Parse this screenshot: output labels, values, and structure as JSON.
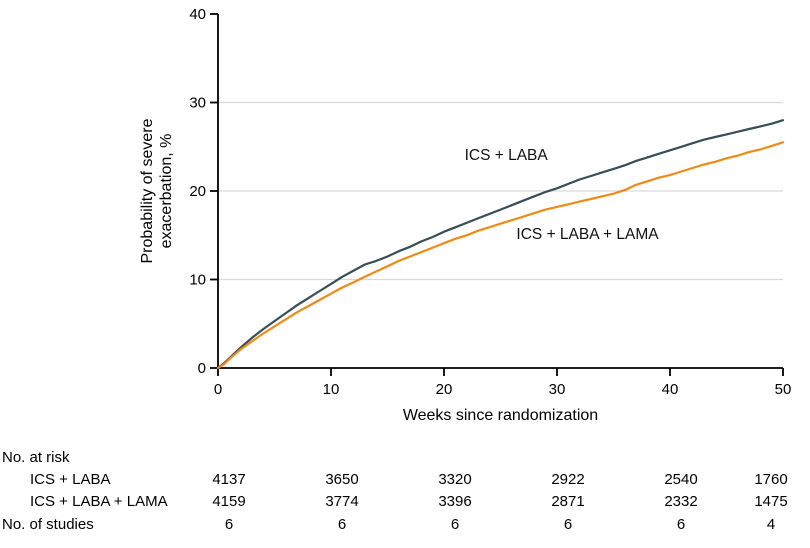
{
  "chart_data": {
    "type": "line",
    "title": "",
    "xlabel": "Weeks since randomization",
    "ylabel": "Probability of severe exacerbation, %",
    "ylabel_lines": [
      "Probability of severe",
      "exacerbation, %"
    ],
    "xlim": [
      0,
      50
    ],
    "ylim": [
      0,
      40
    ],
    "xticks": [
      0,
      10,
      20,
      30,
      40,
      50
    ],
    "yticks": [
      0,
      10,
      20,
      30,
      40
    ],
    "gridlines_y": [
      10,
      20,
      30
    ],
    "grid": "horizontal-light",
    "legend_position": "inline-annotations",
    "colors": {
      "ics_laba": "#374e55",
      "ics_laba_lama": "#ef8a17",
      "grid": "#d9d9d9",
      "axis": "#000000"
    },
    "series": [
      {
        "id": "ics-laba",
        "name": "ICS + LABA",
        "color": "#374e55",
        "points": [
          [
            0,
            0
          ],
          [
            0.5,
            0.5
          ],
          [
            1,
            1.1
          ],
          [
            2,
            2.3
          ],
          [
            3,
            3.4
          ],
          [
            4,
            4.4
          ],
          [
            5,
            5.3
          ],
          [
            6,
            6.2
          ],
          [
            7,
            7.1
          ],
          [
            8,
            7.9
          ],
          [
            9,
            8.7
          ],
          [
            10,
            9.5
          ],
          [
            11,
            10.3
          ],
          [
            12,
            11.0
          ],
          [
            13,
            11.7
          ],
          [
            14,
            12.1
          ],
          [
            15,
            12.6
          ],
          [
            16,
            13.2
          ],
          [
            17,
            13.7
          ],
          [
            18,
            14.3
          ],
          [
            19,
            14.8
          ],
          [
            20,
            15.4
          ],
          [
            21,
            15.9
          ],
          [
            22,
            16.4
          ],
          [
            23,
            16.9
          ],
          [
            24,
            17.4
          ],
          [
            25,
            17.9
          ],
          [
            26,
            18.4
          ],
          [
            27,
            18.9
          ],
          [
            28,
            19.4
          ],
          [
            29,
            19.9
          ],
          [
            30,
            20.3
          ],
          [
            31,
            20.8
          ],
          [
            32,
            21.3
          ],
          [
            33,
            21.7
          ],
          [
            34,
            22.1
          ],
          [
            35,
            22.5
          ],
          [
            36,
            22.9
          ],
          [
            37,
            23.4
          ],
          [
            38,
            23.8
          ],
          [
            39,
            24.2
          ],
          [
            40,
            24.6
          ],
          [
            41,
            25.0
          ],
          [
            42,
            25.4
          ],
          [
            43,
            25.8
          ],
          [
            44,
            26.1
          ],
          [
            45,
            26.4
          ],
          [
            46,
            26.7
          ],
          [
            47,
            27.0
          ],
          [
            48,
            27.3
          ],
          [
            49,
            27.6
          ],
          [
            50,
            28.0
          ]
        ]
      },
      {
        "id": "ics-laba-lama",
        "name": "ICS + LABA + LAMA",
        "color": "#ef8a17",
        "points": [
          [
            0,
            0
          ],
          [
            0.5,
            0.4
          ],
          [
            1,
            1.0
          ],
          [
            2,
            2.1
          ],
          [
            3,
            3.0
          ],
          [
            4,
            3.9
          ],
          [
            5,
            4.7
          ],
          [
            6,
            5.5
          ],
          [
            7,
            6.3
          ],
          [
            8,
            7.0
          ],
          [
            9,
            7.7
          ],
          [
            10,
            8.4
          ],
          [
            11,
            9.1
          ],
          [
            12,
            9.7
          ],
          [
            13,
            10.3
          ],
          [
            14,
            10.9
          ],
          [
            15,
            11.5
          ],
          [
            16,
            12.1
          ],
          [
            17,
            12.6
          ],
          [
            18,
            13.1
          ],
          [
            19,
            13.6
          ],
          [
            20,
            14.1
          ],
          [
            21,
            14.6
          ],
          [
            22,
            15.0
          ],
          [
            23,
            15.5
          ],
          [
            24,
            15.9
          ],
          [
            25,
            16.3
          ],
          [
            26,
            16.7
          ],
          [
            27,
            17.1
          ],
          [
            28,
            17.5
          ],
          [
            29,
            17.9
          ],
          [
            30,
            18.2
          ],
          [
            31,
            18.5
          ],
          [
            32,
            18.8
          ],
          [
            33,
            19.1
          ],
          [
            34,
            19.4
          ],
          [
            35,
            19.7
          ],
          [
            36,
            20.1
          ],
          [
            37,
            20.7
          ],
          [
            38,
            21.1
          ],
          [
            39,
            21.5
          ],
          [
            40,
            21.8
          ],
          [
            41,
            22.2
          ],
          [
            42,
            22.6
          ],
          [
            43,
            23.0
          ],
          [
            44,
            23.3
          ],
          [
            45,
            23.7
          ],
          [
            46,
            24.0
          ],
          [
            47,
            24.4
          ],
          [
            48,
            24.7
          ],
          [
            49,
            25.1
          ],
          [
            50,
            25.5
          ]
        ]
      }
    ],
    "annotations": [
      {
        "text": "ICS + LABA",
        "x": 25.5,
        "y": 23.5,
        "series": "ics-laba"
      },
      {
        "text": "ICS + LABA + LAMA",
        "x": 32.7,
        "y": 14.6,
        "series": "ics-laba-lama"
      }
    ],
    "risk_table": {
      "header": "No. at risk",
      "rows": [
        {
          "label": "ICS + LABA",
          "values": [
            "4137",
            "3650",
            "3320",
            "2922",
            "2540",
            "1760"
          ]
        },
        {
          "label": "ICS + LABA + LAMA",
          "values": [
            "4159",
            "3774",
            "3396",
            "2871",
            "2332",
            "1475"
          ]
        }
      ],
      "studies_row": {
        "label": "No. of studies",
        "values": [
          "6",
          "6",
          "6",
          "6",
          "6",
          "4"
        ]
      }
    }
  }
}
